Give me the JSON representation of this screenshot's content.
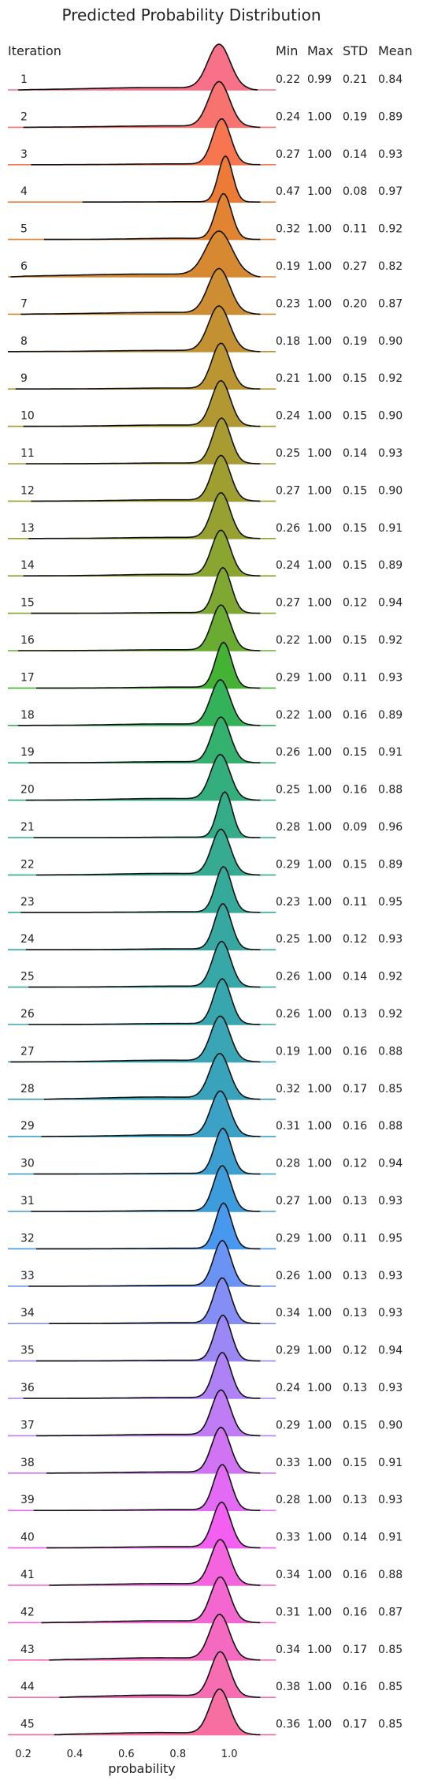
{
  "chart_data": {
    "type": "ridgeline",
    "title": "Predicted Probability Distribution",
    "xlabel": "probability",
    "xlim": [
      0.14,
      1.18
    ],
    "xticks": [
      "0.2",
      "0.4",
      "0.6",
      "0.8",
      "1.0"
    ],
    "columns": [
      "Iteration",
      "Min",
      "Max",
      "STD",
      "Mean"
    ],
    "rows": [
      {
        "iteration": "1",
        "min": "0.22",
        "max": "0.99",
        "std": "0.21",
        "mean": "0.84",
        "color": "#f77189"
      },
      {
        "iteration": "2",
        "min": "0.24",
        "max": "1.00",
        "std": "0.19",
        "mean": "0.89",
        "color": "#f7736f"
      },
      {
        "iteration": "3",
        "min": "0.27",
        "max": "1.00",
        "std": "0.14",
        "mean": "0.93",
        "color": "#f7754f"
      },
      {
        "iteration": "4",
        "min": "0.47",
        "max": "1.00",
        "std": "0.08",
        "mean": "0.97",
        "color": "#ec7c35"
      },
      {
        "iteration": "5",
        "min": "0.32",
        "max": "1.00",
        "std": "0.11",
        "mean": "0.92",
        "color": "#e28332"
      },
      {
        "iteration": "6",
        "min": "0.19",
        "max": "1.00",
        "std": "0.27",
        "mean": "0.82",
        "color": "#d78932"
      },
      {
        "iteration": "7",
        "min": "0.23",
        "max": "1.00",
        "std": "0.20",
        "mean": "0.87",
        "color": "#cd8d32"
      },
      {
        "iteration": "8",
        "min": "0.18",
        "max": "1.00",
        "std": "0.19",
        "mean": "0.90",
        "color": "#c39132"
      },
      {
        "iteration": "9",
        "min": "0.21",
        "max": "1.00",
        "std": "0.15",
        "mean": "0.92",
        "color": "#ba9532"
      },
      {
        "iteration": "10",
        "min": "0.24",
        "max": "1.00",
        "std": "0.15",
        "mean": "0.90",
        "color": "#b19832"
      },
      {
        "iteration": "11",
        "min": "0.25",
        "max": "1.00",
        "std": "0.14",
        "mean": "0.93",
        "color": "#a89b32"
      },
      {
        "iteration": "12",
        "min": "0.27",
        "max": "1.00",
        "std": "0.15",
        "mean": "0.90",
        "color": "#9f9e31"
      },
      {
        "iteration": "13",
        "min": "0.26",
        "max": "1.00",
        "std": "0.15",
        "mean": "0.91",
        "color": "#96a131"
      },
      {
        "iteration": "14",
        "min": "0.24",
        "max": "1.00",
        "std": "0.15",
        "mean": "0.89",
        "color": "#8ba531"
      },
      {
        "iteration": "15",
        "min": "0.27",
        "max": "1.00",
        "std": "0.12",
        "mean": "0.94",
        "color": "#7ea831"
      },
      {
        "iteration": "16",
        "min": "0.22",
        "max": "1.00",
        "std": "0.15",
        "mean": "0.92",
        "color": "#6aac31"
      },
      {
        "iteration": "17",
        "min": "0.29",
        "max": "1.00",
        "std": "0.11",
        "mean": "0.93",
        "color": "#44b233"
      },
      {
        "iteration": "18",
        "min": "0.22",
        "max": "1.00",
        "std": "0.16",
        "mean": "0.89",
        "color": "#33b25a"
      },
      {
        "iteration": "19",
        "min": "0.26",
        "max": "1.00",
        "std": "0.15",
        "mean": "0.91",
        "color": "#34b06f"
      },
      {
        "iteration": "20",
        "min": "0.25",
        "max": "1.00",
        "std": "0.16",
        "mean": "0.88",
        "color": "#35ae7e"
      },
      {
        "iteration": "21",
        "min": "0.28",
        "max": "1.00",
        "std": "0.09",
        "mean": "0.96",
        "color": "#35ac89"
      },
      {
        "iteration": "22",
        "min": "0.29",
        "max": "1.00",
        "std": "0.15",
        "mean": "0.89",
        "color": "#36ab92"
      },
      {
        "iteration": "23",
        "min": "0.23",
        "max": "1.00",
        "std": "0.11",
        "mean": "0.95",
        "color": "#36aa9a"
      },
      {
        "iteration": "24",
        "min": "0.25",
        "max": "1.00",
        "std": "0.12",
        "mean": "0.93",
        "color": "#37a8a1"
      },
      {
        "iteration": "25",
        "min": "0.26",
        "max": "1.00",
        "std": "0.14",
        "mean": "0.92",
        "color": "#38a7a8"
      },
      {
        "iteration": "26",
        "min": "0.26",
        "max": "1.00",
        "std": "0.13",
        "mean": "0.92",
        "color": "#38a6ae"
      },
      {
        "iteration": "27",
        "min": "0.19",
        "max": "1.00",
        "std": "0.16",
        "mean": "0.88",
        "color": "#39a5b5"
      },
      {
        "iteration": "28",
        "min": "0.32",
        "max": "1.00",
        "std": "0.17",
        "mean": "0.85",
        "color": "#3aa3bc"
      },
      {
        "iteration": "29",
        "min": "0.31",
        "max": "1.00",
        "std": "0.16",
        "mean": "0.88",
        "color": "#3ba1c5"
      },
      {
        "iteration": "30",
        "min": "0.28",
        "max": "1.00",
        "std": "0.12",
        "mean": "0.94",
        "color": "#3c9fcf"
      },
      {
        "iteration": "31",
        "min": "0.27",
        "max": "1.00",
        "std": "0.13",
        "mean": "0.93",
        "color": "#3d9cdc"
      },
      {
        "iteration": "32",
        "min": "0.29",
        "max": "1.00",
        "std": "0.11",
        "mean": "0.95",
        "color": "#4898f0"
      },
      {
        "iteration": "33",
        "min": "0.26",
        "max": "1.00",
        "std": "0.13",
        "mean": "0.93",
        "color": "#6b93f4"
      },
      {
        "iteration": "34",
        "min": "0.34",
        "max": "1.00",
        "std": "0.13",
        "mean": "0.93",
        "color": "#858ef4"
      },
      {
        "iteration": "35",
        "min": "0.29",
        "max": "1.00",
        "std": "0.12",
        "mean": "0.94",
        "color": "#9b88f4"
      },
      {
        "iteration": "36",
        "min": "0.24",
        "max": "1.00",
        "std": "0.13",
        "mean": "0.93",
        "color": "#ae82f4"
      },
      {
        "iteration": "37",
        "min": "0.29",
        "max": "1.00",
        "std": "0.15",
        "mean": "0.90",
        "color": "#c07cf4"
      },
      {
        "iteration": "38",
        "min": "0.33",
        "max": "1.00",
        "std": "0.15",
        "mean": "0.91",
        "color": "#d174f4"
      },
      {
        "iteration": "39",
        "min": "0.28",
        "max": "1.00",
        "std": "0.13",
        "mean": "0.93",
        "color": "#e36af4"
      },
      {
        "iteration": "40",
        "min": "0.33",
        "max": "1.00",
        "std": "0.14",
        "mean": "0.91",
        "color": "#f35ff1"
      },
      {
        "iteration": "41",
        "min": "0.34",
        "max": "1.00",
        "std": "0.16",
        "mean": "0.88",
        "color": "#f564df"
      },
      {
        "iteration": "42",
        "min": "0.31",
        "max": "1.00",
        "std": "0.16",
        "mean": "0.87",
        "color": "#f567d0"
      },
      {
        "iteration": "43",
        "min": "0.34",
        "max": "1.00",
        "std": "0.17",
        "mean": "0.85",
        "color": "#f56ac1"
      },
      {
        "iteration": "44",
        "min": "0.38",
        "max": "1.00",
        "std": "0.16",
        "mean": "0.85",
        "color": "#f66db2"
      },
      {
        "iteration": "45",
        "min": "0.36",
        "max": "1.00",
        "std": "0.17",
        "mean": "0.85",
        "color": "#f66fa0"
      }
    ]
  }
}
